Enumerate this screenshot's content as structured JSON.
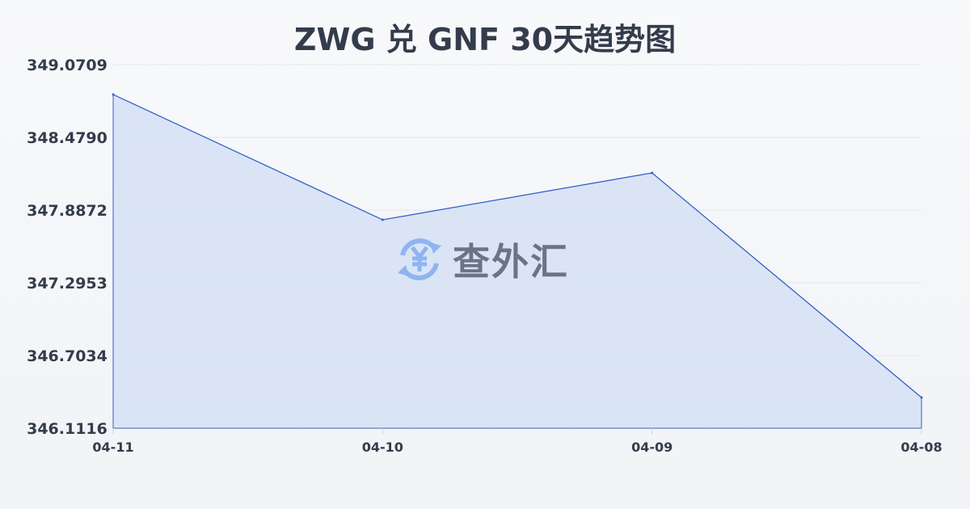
{
  "chart_data": {
    "type": "area",
    "title": "ZWG 兑 GNF 30天趋势图",
    "categories": [
      "04-11",
      "04-10",
      "04-09",
      "04-08"
    ],
    "values": [
      348.8276,
      347.808,
      348.1897,
      346.3615
    ],
    "yticks": [
      "349.0709",
      "348.4790",
      "347.8872",
      "347.2953",
      "346.7034",
      "346.1116"
    ],
    "ylim": [
      346.1116,
      349.0709
    ],
    "grid": true,
    "colors": {
      "line": "#3461c9",
      "fill": "#d5e0f5"
    }
  },
  "watermark": {
    "text": "查外汇",
    "icon": "yen-exchange-icon"
  }
}
